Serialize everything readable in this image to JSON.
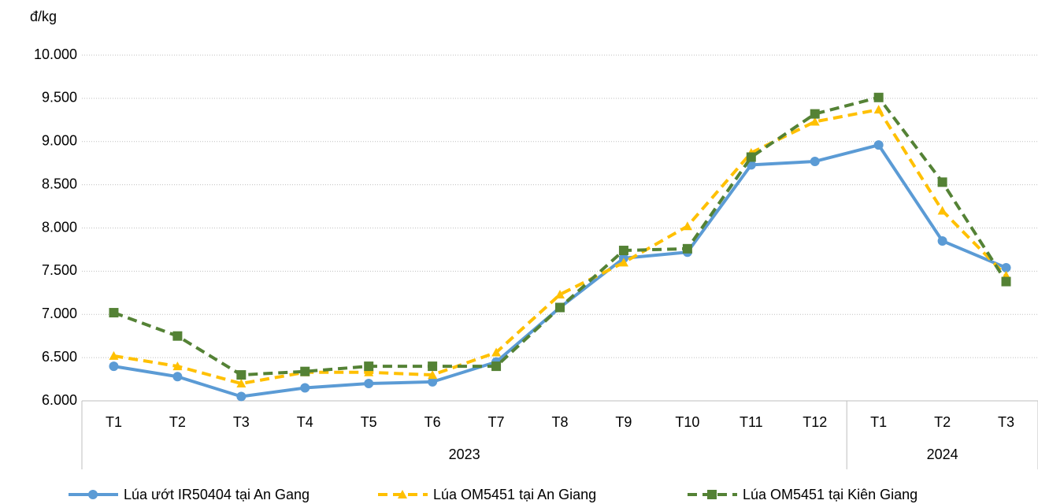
{
  "chart_data": {
    "type": "line",
    "y_unit": "đ/kg",
    "categories": [
      "T1",
      "T2",
      "T3",
      "T4",
      "T5",
      "T6",
      "T7",
      "T8",
      "T9",
      "T10",
      "T11",
      "T12",
      "T1",
      "T2",
      "T3"
    ],
    "groups": [
      {
        "label": "2023",
        "count": 12
      },
      {
        "label": "2024",
        "count": 3
      }
    ],
    "ylim": [
      6000,
      10000
    ],
    "yticks": [
      {
        "value": 6000,
        "label": "6.000"
      },
      {
        "value": 6500,
        "label": "6.500"
      },
      {
        "value": 7000,
        "label": "7.000"
      },
      {
        "value": 7500,
        "label": "7.500"
      },
      {
        "value": 8000,
        "label": "8.000"
      },
      {
        "value": 8500,
        "label": "8.500"
      },
      {
        "value": 9000,
        "label": "9.000"
      },
      {
        "value": 9500,
        "label": "9.500"
      },
      {
        "value": 10000,
        "label": "10.000"
      }
    ],
    "grid": true,
    "legend": "bottom",
    "series": [
      {
        "name": "Lúa ướt IR50404 tại An Gang",
        "color": "#5b9bd5",
        "dash": "solid",
        "marker": "circle",
        "values": [
          6400,
          6280,
          6050,
          6150,
          6200,
          6220,
          6450,
          7080,
          7650,
          7720,
          8730,
          8770,
          8960,
          7850,
          7540
        ]
      },
      {
        "name": "Lúa OM5451 tại An Giang",
        "color": "#ffc000",
        "dash": "dashed",
        "marker": "triangle",
        "values": [
          6520,
          6400,
          6200,
          6330,
          6330,
          6300,
          6560,
          7230,
          7600,
          8020,
          8870,
          9230,
          9370,
          8200,
          7450
        ]
      },
      {
        "name": "Lúa OM5451 tại Kiên Giang",
        "color": "#548235",
        "dash": "dashed",
        "marker": "square",
        "values": [
          7020,
          6750,
          6300,
          6340,
          6400,
          6400,
          6400,
          7080,
          7740,
          7760,
          8820,
          9320,
          9510,
          8530,
          7380
        ]
      }
    ]
  }
}
